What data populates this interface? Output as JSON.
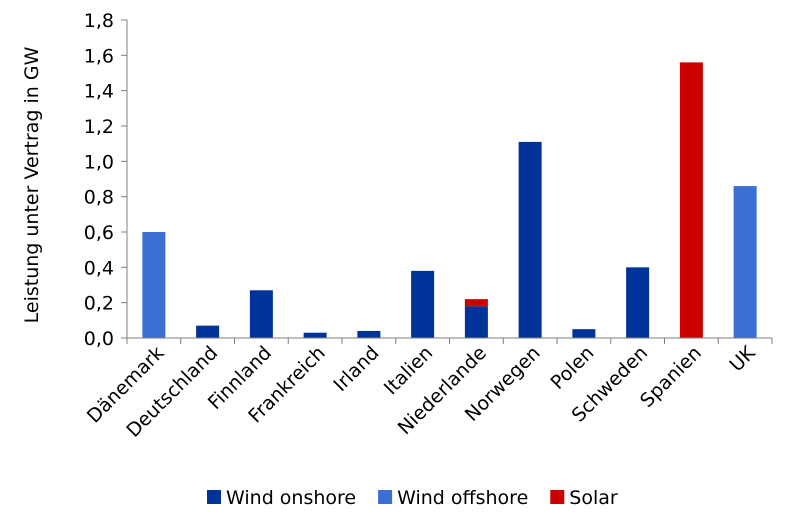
{
  "chart_data": {
    "type": "bar",
    "stacked": true,
    "categories": [
      "Dänemark",
      "Deutschland",
      "Finnland",
      "Frankreich",
      "Irland",
      "Italien",
      "Niederlande",
      "Norwegen",
      "Polen",
      "Schweden",
      "Spanien",
      "UK"
    ],
    "series": [
      {
        "name": "Wind onshore",
        "color": "#003399",
        "values": [
          0,
          0.07,
          0.27,
          0.03,
          0.04,
          0.38,
          0.18,
          1.11,
          0.05,
          0.4,
          0,
          0
        ]
      },
      {
        "name": "Wind offshore",
        "color": "#3b6fd4",
        "values": [
          0.6,
          0,
          0,
          0,
          0,
          0,
          0,
          0,
          0,
          0,
          0,
          0.86
        ]
      },
      {
        "name": "Solar",
        "color": "#cc0000",
        "values": [
          0,
          0,
          0,
          0,
          0,
          0,
          0.04,
          0,
          0,
          0,
          1.56,
          0
        ]
      }
    ],
    "ylabel": "Leistung unter Vertrag in GW",
    "xlabel": "",
    "ylim": [
      0,
      1.8
    ],
    "yticks": [
      "0,0",
      "0,2",
      "0,4",
      "0,6",
      "0,8",
      "1,0",
      "1,2",
      "1,4",
      "1,6",
      "1,8"
    ],
    "grid": false,
    "legend_position": "bottom"
  }
}
